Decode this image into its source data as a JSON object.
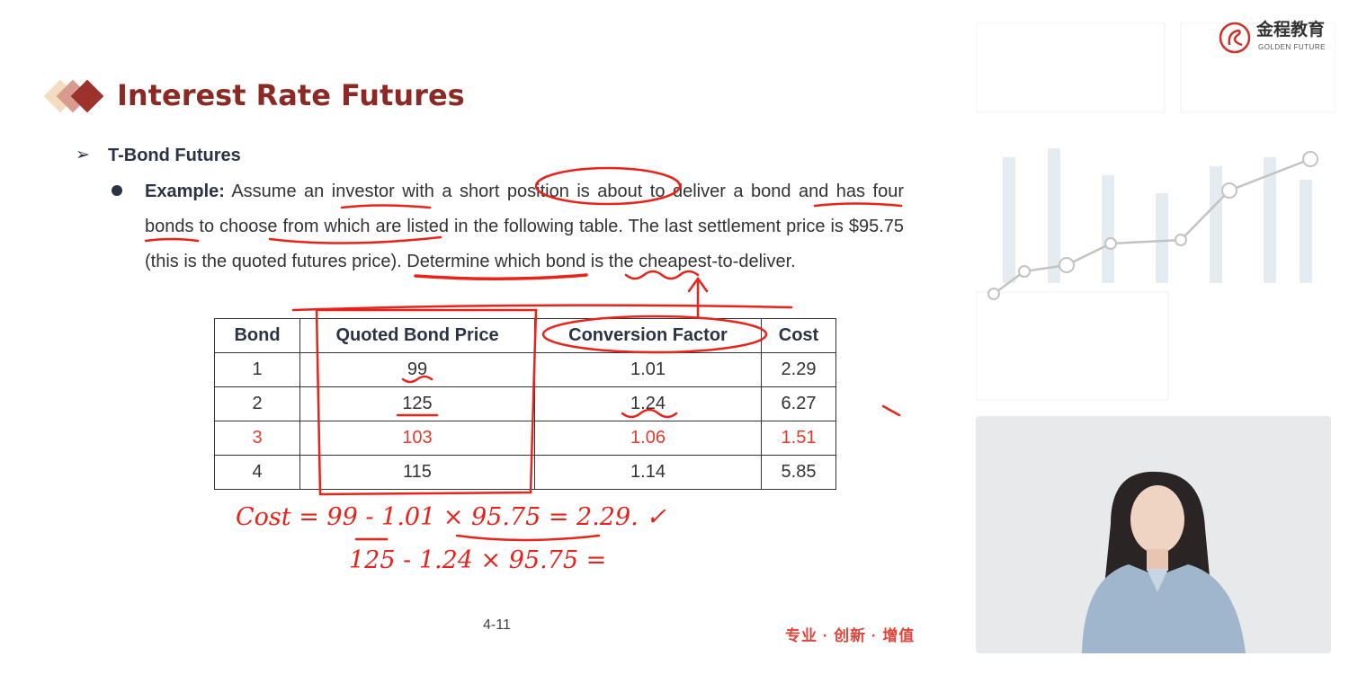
{
  "slide": {
    "title": "Interest Rate Futures",
    "subtitle": "T-Bond Futures",
    "example_label": "Example:",
    "example_text": "Assume an investor with a short position is about to deliver a bond and has four bonds to choose from which are listed in the following table. The last settlement price is $95.75 (this is the quoted futures price). Determine which bond is the cheapest-to-deliver.",
    "table": {
      "headers": [
        "Bond",
        "Quoted Bond Price",
        "Conversion Factor",
        "Cost"
      ],
      "rows": [
        [
          "1",
          "99",
          "1.01",
          "2.29"
        ],
        [
          "2",
          "125",
          "1.24",
          "6.27"
        ],
        [
          "3",
          "103",
          "1.06",
          "1.51"
        ],
        [
          "4",
          "115",
          "1.14",
          "5.85"
        ]
      ],
      "highlighted_row": 3
    },
    "page_number": "4-11",
    "slogan": "专业 · 创新 · 增值"
  },
  "annotations": {
    "line1": "Cost = 99 - 1.01 × 95.75 = 2.29. ✓",
    "line2": "125 - 1.24 × 95.75 ="
  },
  "logo": {
    "cn": "金程教育",
    "en": "GOLDEN FUTURE"
  },
  "colors": {
    "title": "#8b2a25",
    "highlight": "#e53b2c",
    "ink": "#e8231a",
    "slogan": "#e0453a"
  }
}
